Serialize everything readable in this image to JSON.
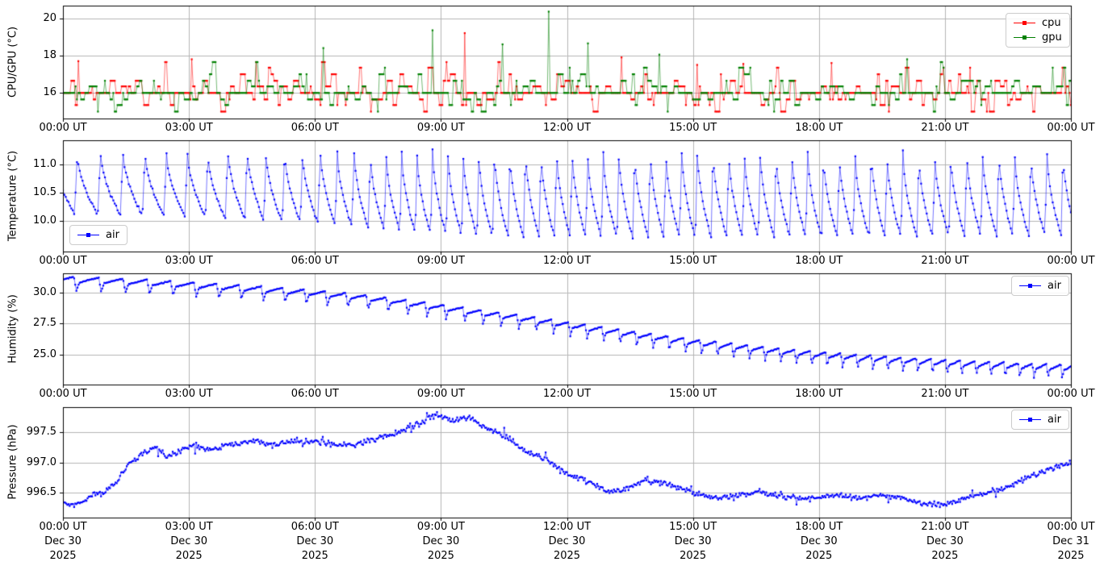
{
  "figure": {
    "background_color": "#ffffff",
    "grid_color": "#b4b4b4",
    "spine_color": "#000000",
    "text_color": "#000000"
  },
  "x_axis": {
    "unit": "hours UT",
    "range_hours": [
      0,
      24
    ],
    "ticks_hours": [
      0,
      3,
      6,
      9,
      12,
      15,
      18,
      21,
      24
    ],
    "tick_labels": [
      "00:00 UT",
      "03:00 UT",
      "06:00 UT",
      "09:00 UT",
      "12:00 UT",
      "15:00 UT",
      "18:00 UT",
      "21:00 UT",
      "00:00 UT"
    ],
    "bottom_date_line2": [
      "Dec 30",
      "Dec 30",
      "Dec 30",
      "Dec 30",
      "Dec 30",
      "Dec 30",
      "Dec 30",
      "Dec 30",
      "Dec 31"
    ],
    "bottom_date_line3": [
      "2025",
      "2025",
      "2025",
      "2025",
      "2025",
      "2025",
      "2025",
      "2025",
      "2025"
    ]
  },
  "chart_data": [
    {
      "type": "line",
      "ylabel": "CPU/GPU (°C)",
      "ylim": [
        14.63,
        20.67
      ],
      "yticks": [
        16,
        18,
        20
      ],
      "ytick_labels": [
        "16",
        "18",
        "20"
      ],
      "grid": true,
      "legend": {
        "location": "upper-right",
        "entries": [
          {
            "label": "cpu",
            "color": "#ff0000"
          },
          {
            "label": "gpu",
            "color": "#008000"
          }
        ]
      },
      "series": [
        {
          "name": "cpu",
          "color": "#ff0000",
          "marker": "square",
          "gen": {
            "kind": "levels",
            "seed": 11,
            "step_min": 2,
            "levels": [
              15.0,
              15.35,
              15.65,
              16.0,
              16.35,
              16.65,
              17.0,
              17.35,
              17.65
            ],
            "weights": [
              2,
              7,
              9,
              44,
              14,
              12,
              7,
              3,
              2
            ],
            "hold_steps": [
              1,
              4
            ],
            "spikes": [
              {
                "t": 0.35,
                "v": 17.7
              },
              {
                "t": 3.05,
                "v": 17.8
              },
              {
                "t": 4.6,
                "v": 17.65
              },
              {
                "t": 9.55,
                "v": 19.2
              },
              {
                "t": 13.3,
                "v": 17.9
              },
              {
                "t": 15.1,
                "v": 17.5
              },
              {
                "t": 16.2,
                "v": 17.55
              },
              {
                "t": 18.3,
                "v": 17.6
              }
            ]
          }
        },
        {
          "name": "gpu",
          "color": "#008000",
          "marker": "square",
          "gen": {
            "kind": "levels",
            "seed": 22,
            "step_min": 2,
            "levels": [
              15.0,
              15.35,
              15.65,
              16.0,
              16.35,
              16.65,
              17.0,
              17.35,
              17.65
            ],
            "weights": [
              2,
              6,
              8,
              50,
              13,
              11,
              6,
              3,
              1
            ],
            "hold_steps": [
              1,
              4
            ],
            "spikes": [
              {
                "t": 6.2,
                "v": 18.4
              },
              {
                "t": 8.8,
                "v": 19.35
              },
              {
                "t": 10.45,
                "v": 18.6
              },
              {
                "t": 11.55,
                "v": 20.35
              },
              {
                "t": 12.5,
                "v": 18.65
              },
              {
                "t": 14.2,
                "v": 18.05
              },
              {
                "t": 20.1,
                "v": 17.8
              }
            ]
          }
        }
      ]
    },
    {
      "type": "line",
      "ylabel": "Temperature (°C)",
      "ylim": [
        9.46,
        11.42
      ],
      "yticks": [
        10.0,
        10.5,
        11.0
      ],
      "ytick_labels": [
        "10.0",
        "10.5",
        "11.0"
      ],
      "grid": true,
      "legend": {
        "location": "lower-left",
        "entries": [
          {
            "label": "air",
            "color": "#0000ff"
          }
        ]
      },
      "series": [
        {
          "name": "air",
          "color": "#0000ff",
          "marker": "square",
          "gen": {
            "kind": "sawtooth",
            "seed": 33,
            "step_min": 2,
            "start_phase": 0.45,
            "rise_frac": 0.12,
            "decay_pow": 0.55,
            "noise": 0.03,
            "period_min": {
              "t": [
                0,
                4,
                8,
                24
              ],
              "v": [
                34,
                28,
                22,
                23
              ]
            },
            "env_max": {
              "t": [
                0,
                24
              ],
              "v": [
                11.25,
                11.25
              ]
            },
            "env_min": {
              "t": [
                0,
                3,
                6,
                8,
                10,
                14,
                20,
                24
              ],
              "v": [
                10.12,
                10.08,
                9.95,
                9.8,
                9.72,
                9.7,
                9.72,
                9.75
              ]
            }
          }
        }
      ]
    },
    {
      "type": "line",
      "ylabel": "Humidity (%)",
      "ylim": [
        22.6,
        31.55
      ],
      "yticks": [
        25.0,
        27.5,
        30.0
      ],
      "ytick_labels": [
        "25.0",
        "27.5",
        "30.0"
      ],
      "grid": true,
      "legend": {
        "location": "upper-right",
        "entries": [
          {
            "label": "air",
            "color": "#0000ff"
          }
        ]
      },
      "series": [
        {
          "name": "air",
          "color": "#0000ff",
          "marker": "square",
          "gen": {
            "kind": "scallop",
            "seed": 44,
            "step_min": 1.6,
            "start_phase": 0.3,
            "noise": 0.05,
            "rise_amp": 0.3,
            "dip_amp": 0.85,
            "rise_frac": 0.78,
            "dip_frac": 0.1,
            "period_min": {
              "t": [
                0,
                6,
                12,
                24
              ],
              "v": [
                36,
                30,
                24,
                20
              ]
            },
            "base": {
              "t": [
                0,
                1,
                2,
                3,
                4,
                5,
                6,
                7,
                8,
                9,
                10,
                11,
                12,
                13,
                14,
                15,
                16,
                17,
                18,
                19,
                20,
                21,
                22,
                23,
                24
              ],
              "v": [
                31.0,
                30.9,
                30.75,
                30.55,
                30.35,
                30.15,
                29.9,
                29.6,
                29.2,
                28.75,
                28.3,
                27.85,
                27.35,
                26.85,
                26.4,
                25.95,
                25.6,
                25.25,
                24.95,
                24.7,
                24.5,
                24.3,
                24.15,
                24.0,
                23.9
              ]
            }
          }
        }
      ]
    },
    {
      "type": "line",
      "ylabel": "Pressure (hPa)",
      "ylim": [
        996.08,
        997.92
      ],
      "yticks": [
        996.5,
        997.0,
        997.5
      ],
      "ytick_labels": [
        "996.5",
        "997.0",
        "997.5"
      ],
      "grid": true,
      "legend": {
        "location": "upper-right",
        "entries": [
          {
            "label": "air",
            "color": "#0000ff"
          }
        ]
      },
      "series": [
        {
          "name": "air",
          "color": "#0000ff",
          "marker": "square",
          "gen": {
            "kind": "trend",
            "seed": 55,
            "step_min": 1.6,
            "noise": 0.055,
            "points": {
              "t": [
                0,
                0.3,
                0.7,
                1.0,
                1.3,
                1.6,
                1.9,
                2.2,
                2.5,
                2.8,
                3.1,
                3.5,
                4.0,
                4.5,
                5.0,
                5.5,
                6.0,
                6.5,
                7.0,
                7.5,
                8.0,
                8.5,
                8.9,
                9.3,
                9.7,
                10.0,
                10.5,
                11.0,
                11.5,
                11.8,
                12.2,
                12.6,
                13.0,
                13.4,
                13.8,
                14.3,
                15.0,
                15.5,
                16.0,
                16.5,
                17.0,
                17.5,
                18.0,
                18.5,
                19.0,
                19.5,
                20.0,
                20.5,
                21.0,
                21.5,
                22.0,
                22.5,
                23.0,
                23.5,
                24.0
              ],
              "v": [
                996.35,
                996.28,
                996.45,
                996.5,
                996.7,
                997.0,
                997.15,
                997.25,
                997.1,
                997.2,
                997.3,
                997.2,
                997.3,
                997.35,
                997.3,
                997.35,
                997.35,
                997.3,
                997.3,
                997.4,
                997.5,
                997.65,
                997.8,
                997.7,
                997.75,
                997.6,
                997.45,
                997.2,
                997.05,
                996.9,
                996.75,
                996.65,
                996.5,
                996.55,
                996.7,
                996.65,
                996.5,
                996.4,
                996.45,
                996.5,
                996.45,
                996.4,
                996.4,
                996.45,
                996.4,
                996.45,
                996.4,
                996.3,
                996.3,
                996.4,
                996.5,
                996.6,
                996.75,
                996.9,
                997.0
              ]
            }
          }
        }
      ]
    }
  ]
}
